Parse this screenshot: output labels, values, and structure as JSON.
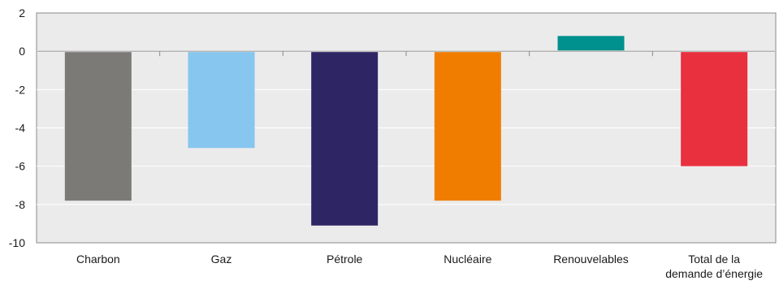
{
  "chart_data": {
    "type": "bar",
    "title": "",
    "xlabel": "",
    "ylabel": "",
    "ylim": [
      -10,
      2
    ],
    "yticks": [
      2,
      0,
      -2,
      -4,
      -6,
      -8,
      -10
    ],
    "grid": true,
    "background": "#ebebeb",
    "categories": [
      {
        "label": [
          "Charbon"
        ],
        "value": -7.8,
        "color": "#7b7a77"
      },
      {
        "label": [
          "Gaz"
        ],
        "value": -5.05,
        "color": "#86c6ef"
      },
      {
        "label": [
          "Pétrole"
        ],
        "value": -9.1,
        "color": "#2e2664"
      },
      {
        "label": [
          "Nucléaire"
        ],
        "value": -7.8,
        "color": "#f07d00"
      },
      {
        "label": [
          "Renouvelables"
        ],
        "value": 0.8,
        "color": "#00918e"
      },
      {
        "label": [
          "Total de la",
          "demande d’énergie"
        ],
        "value": -6.0,
        "color": "#e8303f"
      }
    ]
  }
}
